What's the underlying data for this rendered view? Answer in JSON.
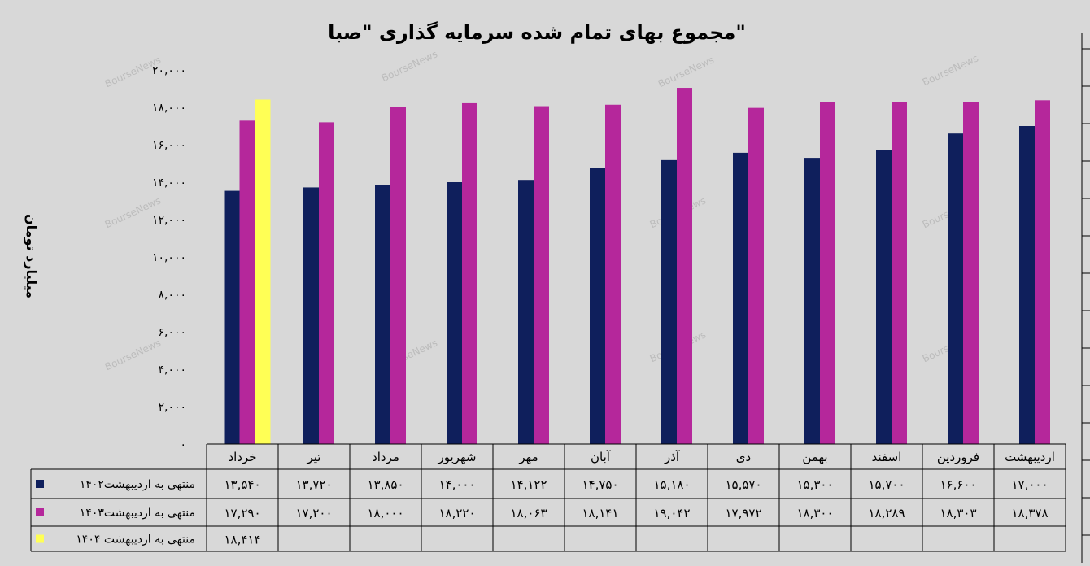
{
  "chart_data": {
    "type": "bar",
    "title": "مجموع بهای تمام شده سرمایه گذاری \"صبا\"",
    "ylabel": "میلیارد تومان",
    "ylim": [
      0,
      20000
    ],
    "yticks": [
      "۰",
      "۲,۰۰۰",
      "۴,۰۰۰",
      "۶,۰۰۰",
      "۸,۰۰۰",
      "۱۰,۰۰۰",
      "۱۲,۰۰۰",
      "۱۴,۰۰۰",
      "۱۶,۰۰۰",
      "۱۸,۰۰۰",
      "۲۰,۰۰۰"
    ],
    "categories": [
      "خرداد",
      "تیر",
      "مرداد",
      "شهریور",
      "مهر",
      "آبان",
      "آذر",
      "دی",
      "بهمن",
      "اسفند",
      "فروردین",
      "اردیبهشت"
    ],
    "series": [
      {
        "name": "منتهی به اردیبهشت۱۴۰۲",
        "color": "#0f1f5c",
        "values": [
          13540,
          13720,
          13850,
          14000,
          14122,
          14750,
          15180,
          15570,
          15300,
          15700,
          16600,
          17000
        ],
        "labels": [
          "۱۳,۵۴۰",
          "۱۳,۷۲۰",
          "۱۳,۸۵۰",
          "۱۴,۰۰۰",
          "۱۴,۱۲۲",
          "۱۴,۷۵۰",
          "۱۵,۱۸۰",
          "۱۵,۵۷۰",
          "۱۵,۳۰۰",
          "۱۵,۷۰۰",
          "۱۶,۶۰۰",
          "۱۷,۰۰۰"
        ]
      },
      {
        "name": "منتهی به اردیبهشت۱۴۰۳",
        "color": "#b5279b",
        "values": [
          17290,
          17200,
          18000,
          18220,
          18063,
          18141,
          19042,
          17972,
          18300,
          18289,
          18303,
          18378
        ],
        "labels": [
          "۱۷,۲۹۰",
          "۱۷,۲۰۰",
          "۱۸,۰۰۰",
          "۱۸,۲۲۰",
          "۱۸,۰۶۳",
          "۱۸,۱۴۱",
          "۱۹,۰۴۲",
          "۱۷,۹۷۲",
          "۱۸,۳۰۰",
          "۱۸,۲۸۹",
          "۱۸,۳۰۳",
          "۱۸,۳۷۸"
        ]
      },
      {
        "name": "منتهی به اردیبهشت ۱۴۰۴",
        "color": "#ffff55",
        "values": [
          18414,
          null,
          null,
          null,
          null,
          null,
          null,
          null,
          null,
          null,
          null,
          null
        ],
        "labels": [
          "۱۸,۴۱۴",
          "",
          "",
          "",
          "",
          "",
          "",
          "",
          "",
          "",
          "",
          ""
        ]
      }
    ],
    "watermark": "BourseNews",
    "grid": false,
    "legend": "data-table-left"
  }
}
